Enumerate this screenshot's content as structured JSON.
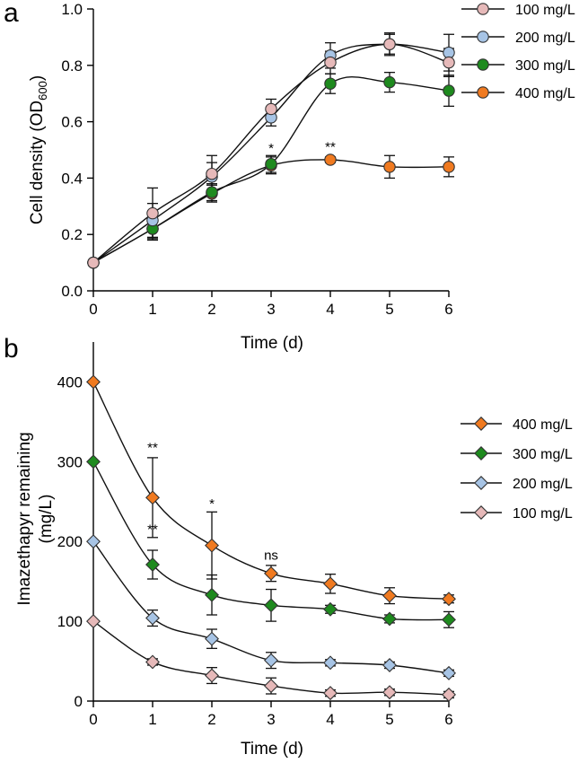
{
  "chart_data": [
    {
      "panel": "a",
      "type": "line",
      "xlabel": "Time (d)",
      "ylabel_main": "Cell density (OD",
      "ylabel_sub": "600",
      "ylabel_close": ")",
      "x": [
        0,
        1,
        2,
        3,
        4,
        5,
        6
      ],
      "xlim": [
        0,
        6
      ],
      "ylim": [
        0,
        1.0
      ],
      "xticks": [
        "0",
        "1",
        "2",
        "3",
        "4",
        "5",
        "6"
      ],
      "yticks": [
        0,
        0.2,
        0.4,
        0.6,
        0.8,
        1.0
      ],
      "ytick_labels": [
        "0.0",
        "0.2",
        "0.4",
        "0.6",
        "0.8",
        "1.0"
      ],
      "marker": "circle",
      "legend_position": "top-right outside",
      "series": [
        {
          "name": "100 mg/L",
          "color": "#E6B9B9",
          "values": [
            0.1,
            0.275,
            0.415,
            0.645,
            0.81,
            0.875,
            0.81
          ],
          "errors": [
            0,
            0.09,
            0.065,
            0.035,
            0.04,
            0.04,
            0.05
          ]
        },
        {
          "name": "200 mg/L",
          "color": "#A7C4E5",
          "values": [
            0.1,
            0.25,
            0.405,
            0.615,
            0.835,
            0.875,
            0.845
          ],
          "errors": [
            0,
            0.06,
            0.05,
            0.03,
            0.045,
            0.035,
            0.065
          ]
        },
        {
          "name": "300 mg/L",
          "color": "#1E8A1E",
          "values": [
            0.1,
            0.22,
            0.35,
            0.45,
            0.735,
            0.74,
            0.71
          ],
          "errors": [
            0,
            0.04,
            0.03,
            0.03,
            0.035,
            0.035,
            0.055
          ]
        },
        {
          "name": "400 mg/L",
          "color": "#F07A20",
          "values": [
            0.1,
            0.22,
            0.345,
            0.445,
            0.465,
            0.44,
            0.44
          ],
          "errors": [
            0,
            0.035,
            0.03,
            0.03,
            0.01,
            0.04,
            0.035
          ]
        }
      ],
      "annotations": [
        {
          "text": "*",
          "x": 3,
          "y": 0.49
        },
        {
          "text": "**",
          "x": 4,
          "y": 0.495
        }
      ]
    },
    {
      "panel": "b",
      "type": "line",
      "xlabel": "Time (d)",
      "ylabel_line1": "Imazethapyr remaining",
      "ylabel_line2": "(mg/L)",
      "x": [
        0,
        1,
        2,
        3,
        4,
        5,
        6
      ],
      "xlim": [
        0,
        6
      ],
      "ylim": [
        0,
        450
      ],
      "xticks": [
        "0",
        "1",
        "2",
        "3",
        "4",
        "5",
        "6"
      ],
      "yticks": [
        0,
        100,
        200,
        300,
        400
      ],
      "ytick_labels": [
        "0",
        "100",
        "200",
        "300",
        "400"
      ],
      "marker": "diamond",
      "legend_position": "right outside",
      "series": [
        {
          "name": "400 mg/L",
          "color": "#F07A20",
          "values": [
            400,
            255,
            195,
            160,
            147,
            132,
            128
          ],
          "errors": [
            0,
            50,
            42,
            10,
            12,
            10,
            5
          ]
        },
        {
          "name": "300 mg/L",
          "color": "#1E8A1E",
          "values": [
            300,
            171,
            133,
            120,
            115,
            103,
            102
          ],
          "errors": [
            0,
            18,
            25,
            20,
            5,
            5,
            10
          ]
        },
        {
          "name": "200 mg/L",
          "color": "#A7C4E5",
          "values": [
            200,
            104,
            78,
            51,
            48,
            45,
            35
          ],
          "errors": [
            0,
            10,
            12,
            10,
            4,
            4,
            4
          ]
        },
        {
          "name": "100 mg/L",
          "color": "#E6B9B9",
          "values": [
            100,
            49,
            32,
            19,
            10,
            11,
            8
          ],
          "errors": [
            0,
            4,
            10,
            10,
            4,
            4,
            4
          ]
        }
      ],
      "annotations": [
        {
          "text": "**",
          "x": 1,
          "y": 312
        },
        {
          "text": "**",
          "x": 1,
          "y": 210
        },
        {
          "text": "*",
          "x": 2,
          "y": 242
        },
        {
          "text": "ns",
          "x": 3,
          "y": 177
        }
      ]
    }
  ]
}
